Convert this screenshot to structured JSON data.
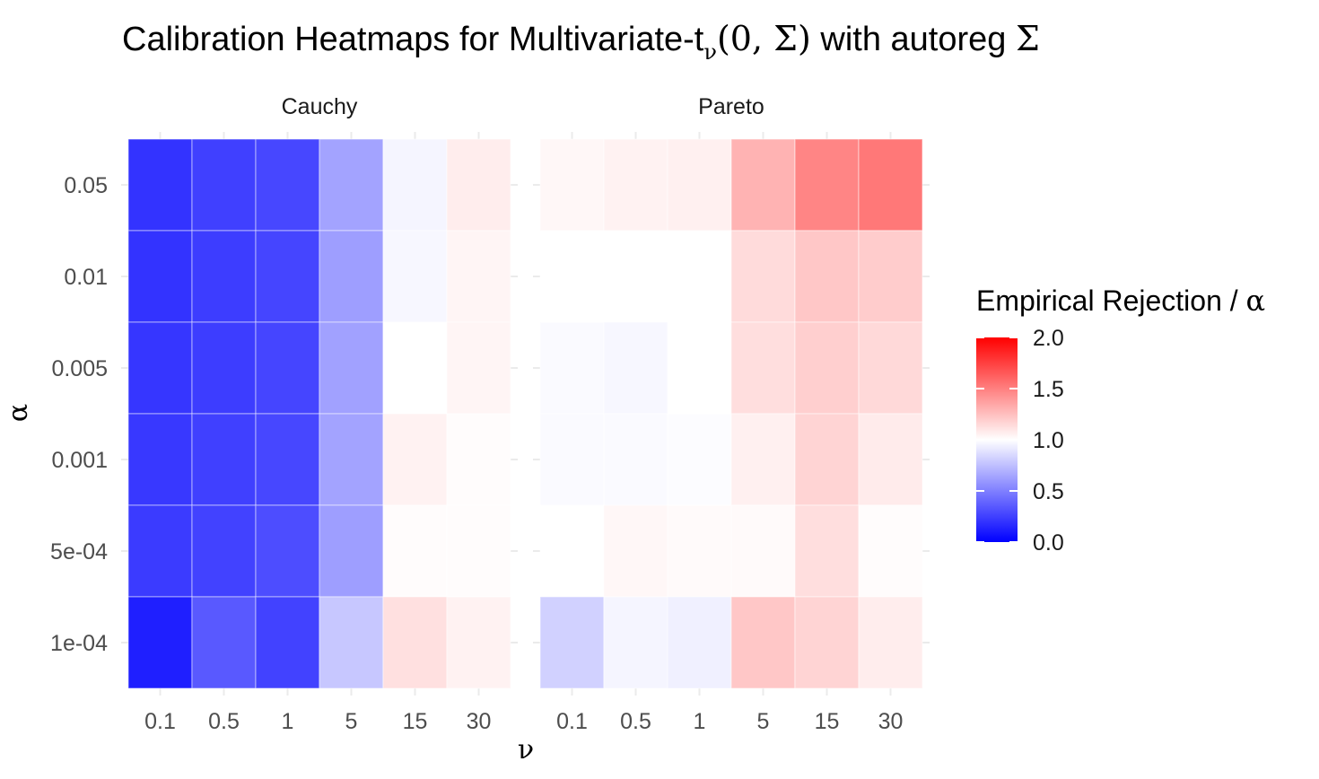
{
  "chart_data": {
    "type": "heatmap",
    "title": {
      "prefix": "Calibration Heatmaps for Multivariate-t",
      "subscript": "ν",
      "args": "(0, Σ)",
      "suffix": " with autoreg ",
      "symbol": "Σ"
    },
    "xlabel": "ν",
    "ylabel": "α",
    "x_categories": [
      "0.1",
      "0.5",
      "1",
      "5",
      "15",
      "30"
    ],
    "y_categories": [
      "0.05",
      "0.01",
      "0.005",
      "0.001",
      "5e-04",
      "1e-04"
    ],
    "legend": {
      "title_text": "Empirical Rejection / ",
      "title_symbol": "α",
      "breaks": [
        "2.0",
        "1.5",
        "1.0",
        "0.5",
        "0.0"
      ],
      "limits": [
        0,
        2
      ],
      "colors": {
        "low": "#0000ff",
        "mid": "#ffffff",
        "high": "#ff0000"
      },
      "midpoint": 1
    },
    "panels": [
      {
        "name": "Cauchy",
        "values": [
          [
            0.2,
            0.25,
            0.28,
            0.64,
            0.96,
            1.07
          ],
          [
            0.2,
            0.24,
            0.27,
            0.62,
            0.97,
            1.04
          ],
          [
            0.21,
            0.24,
            0.27,
            0.63,
            1.0,
            1.04
          ],
          [
            0.22,
            0.25,
            0.28,
            0.64,
            1.05,
            1.01
          ],
          [
            0.23,
            0.26,
            0.3,
            0.62,
            1.01,
            1.01
          ],
          [
            0.12,
            0.35,
            0.26,
            0.78,
            1.12,
            1.05
          ]
        ]
      },
      {
        "name": "Pareto",
        "values": [
          [
            1.03,
            1.05,
            1.06,
            1.3,
            1.48,
            1.53
          ],
          [
            1.0,
            1.0,
            1.0,
            1.14,
            1.22,
            1.2
          ],
          [
            0.98,
            0.97,
            1.0,
            1.13,
            1.19,
            1.15
          ],
          [
            0.98,
            0.98,
            0.99,
            1.06,
            1.17,
            1.08
          ],
          [
            1.0,
            1.03,
            1.02,
            1.02,
            1.13,
            1.01
          ],
          [
            0.82,
            0.96,
            0.94,
            1.22,
            1.17,
            1.07
          ]
        ]
      }
    ]
  }
}
